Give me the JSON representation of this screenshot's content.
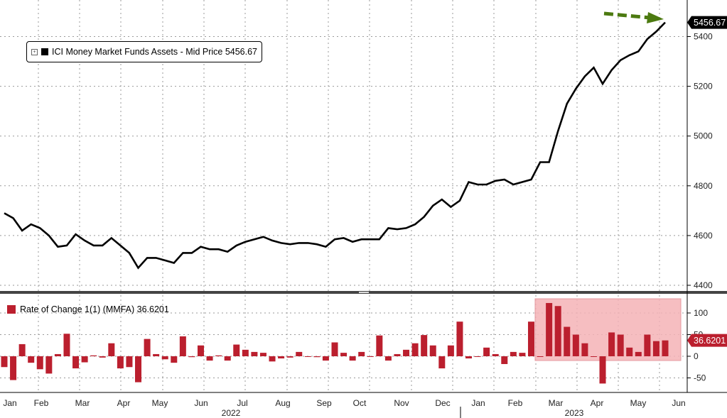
{
  "colors": {
    "line": "#000000",
    "bar": "#bb1f2e",
    "highlight": "#f4b3b6",
    "arrow": "#4c7a10",
    "label_bg": "#000000",
    "label_bar_bg": "#bb1f2e"
  },
  "upper_legend": {
    "icon": "expand-icon",
    "text": "ICI Money Market Funds Assets - Mid Price 5456.67"
  },
  "lower_legend": {
    "text": "Rate of Change 1(1) (MMFA) 36.6201"
  },
  "last_value_label": "5456.67",
  "last_change_label": "36.6201",
  "x_axis": {
    "months": [
      "Jan",
      "Feb",
      "Mar",
      "Apr",
      "May",
      "Jun",
      "Jul",
      "Aug",
      "Sep",
      "Oct",
      "Nov",
      "Dec",
      "Jan",
      "Feb",
      "Mar",
      "Apr",
      "May",
      "Jun"
    ],
    "years": [
      "2022",
      "2023"
    ]
  },
  "chart_data": [
    {
      "type": "line",
      "title": "",
      "series": [
        {
          "name": "ICI Money Market Funds Assets - Mid Price",
          "values": [
            4690,
            4670,
            4620,
            4645,
            4630,
            4600,
            4555,
            4560,
            4605,
            4580,
            4560,
            4560,
            4590,
            4560,
            4530,
            4470,
            4510,
            4510,
            4500,
            4490,
            4530,
            4530,
            4555,
            4545,
            4545,
            4535,
            4560,
            4575,
            4585,
            4595,
            4580,
            4570,
            4565,
            4570,
            4570,
            4565,
            4555,
            4585,
            4590,
            4575,
            4585,
            4585,
            4585,
            4630,
            4625,
            4630,
            4645,
            4675,
            4720,
            4745,
            4715,
            4740,
            4815,
            4805,
            4805,
            4820,
            4825,
            4805,
            4815,
            4825,
            4895,
            4895,
            5020,
            5130,
            5190,
            5240,
            5275,
            5210,
            5265,
            5305,
            5325,
            5340,
            5390,
            5420,
            5456.67
          ]
        }
      ],
      "ylim": [
        4380,
        5520
      ],
      "y_ticks": [
        4400,
        4600,
        4800,
        5000,
        5200,
        5400
      ],
      "grid": true,
      "legend": "top-left"
    },
    {
      "type": "bar",
      "title": "",
      "series": [
        {
          "name": "Rate of Change 1(1) (MMFA)",
          "values": [
            -25,
            -55,
            28,
            -15,
            -30,
            -40,
            5,
            52,
            -28,
            -14,
            2,
            -3,
            30,
            -28,
            -25,
            -60,
            40,
            5,
            -7,
            -15,
            46,
            -2,
            25,
            -10,
            2,
            -10,
            27,
            15,
            10,
            8,
            -12,
            -5,
            -3,
            10,
            -1,
            -2,
            -10,
            32,
            8,
            -10,
            10,
            -1,
            48,
            -10,
            5,
            15,
            30,
            49,
            25,
            -28,
            25,
            80,
            -5,
            0,
            20,
            5,
            -18,
            10,
            8,
            80,
            0,
            123,
            116,
            68,
            50,
            30,
            0,
            -63,
            55,
            50,
            20,
            10,
            50,
            35,
            36.62
          ]
        }
      ],
      "ylim": [
        -80,
        130
      ],
      "y_ticks": [
        -50,
        0,
        50,
        100
      ],
      "grid": true,
      "legend": "top-left"
    }
  ]
}
